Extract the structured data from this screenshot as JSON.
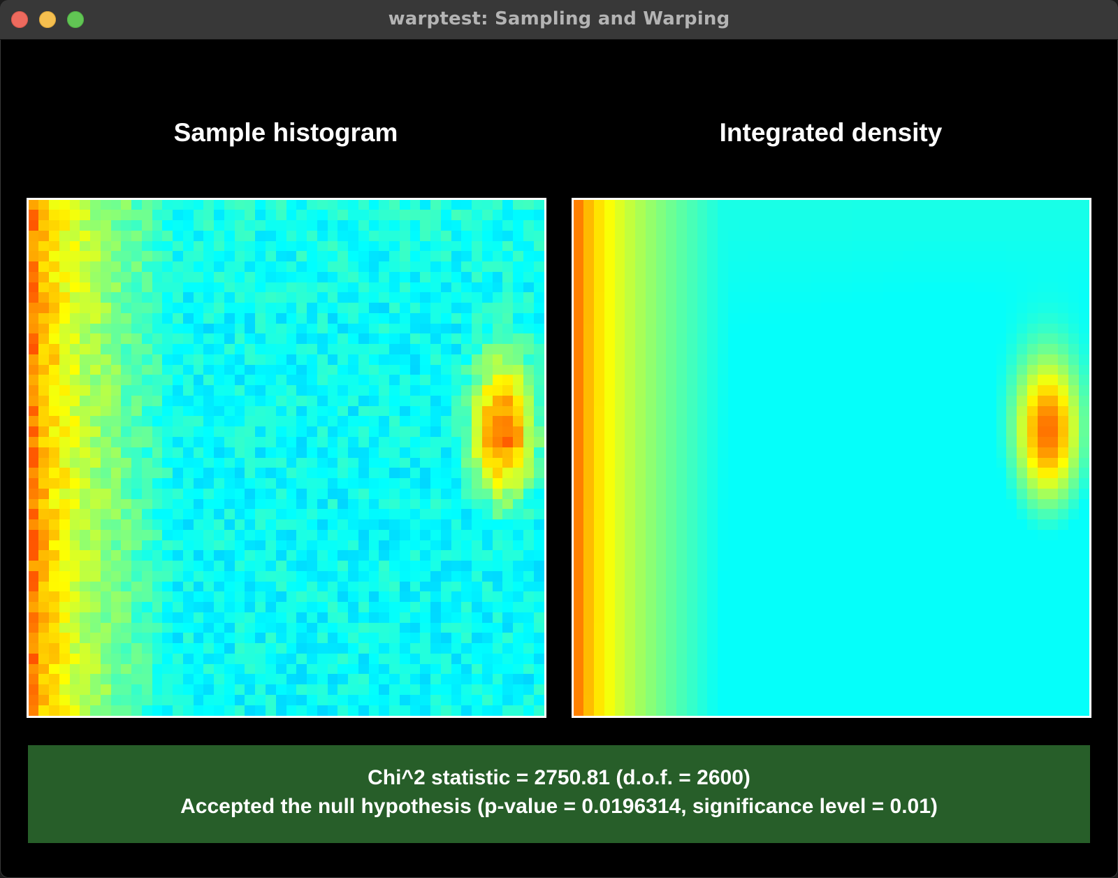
{
  "window": {
    "title": "warptest: Sampling and Warping"
  },
  "panels": {
    "left": {
      "title": "Sample histogram"
    },
    "right": {
      "title": "Integrated density"
    }
  },
  "result": {
    "statistic_line": "Chi^2 statistic = 2750.81 (d.o.f. = 2600)",
    "verdict_line": "Accepted the null hypothesis (p-value = 0.0196314, significance level = 0.01)",
    "background_color": "#275e29"
  },
  "chart_data": [
    {
      "type": "heatmap",
      "title": "Sample histogram",
      "grid": [
        50,
        50
      ],
      "colormap": "jet",
      "colors": {
        "low": "#0000ff",
        "mid": "#00ff00",
        "high": "#ff0000"
      },
      "noisy": true
    },
    {
      "type": "heatmap",
      "title": "Integrated density",
      "grid": [
        50,
        50
      ],
      "colormap": "jet",
      "colors": {
        "low": "#0000ff",
        "mid": "#00ff00",
        "high": "#ff0000"
      },
      "noisy": false
    }
  ]
}
